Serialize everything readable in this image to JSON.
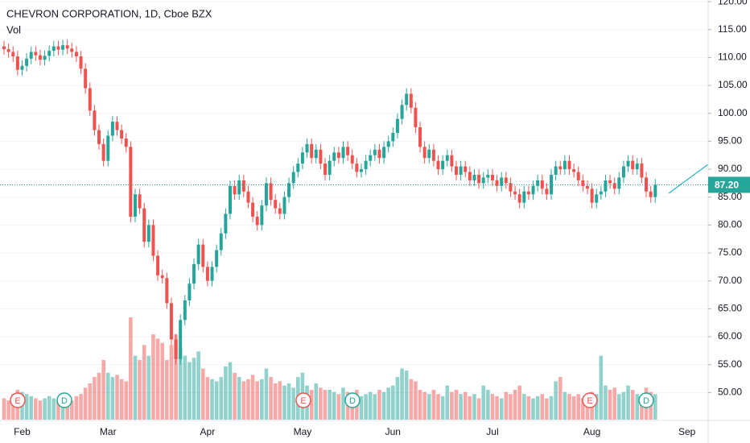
{
  "chart_data": {
    "type": "candlestick",
    "title": "CHEVRON CORPORATION, 1D, Cboe BZX",
    "volume_label": "Vol",
    "categories": [
      null,
      null,
      null,
      null,
      "Feb",
      null,
      null,
      null,
      null,
      null,
      null,
      null,
      null,
      null,
      null,
      null,
      null,
      null,
      null,
      null,
      null,
      null,
      null,
      "Mar",
      null,
      null,
      null,
      null,
      null,
      null,
      null,
      null,
      null,
      null,
      null,
      null,
      null,
      null,
      null,
      null,
      null,
      null,
      null,
      null,
      null,
      "Apr",
      null,
      null,
      null,
      null,
      null,
      null,
      null,
      null,
      null,
      null,
      null,
      null,
      null,
      null,
      null,
      null,
      null,
      null,
      null,
      null,
      "May",
      null,
      null,
      null,
      null,
      null,
      null,
      null,
      null,
      null,
      null,
      null,
      null,
      null,
      null,
      null,
      null,
      null,
      null,
      null,
      "Jun",
      null,
      null,
      null,
      null,
      null,
      null,
      null,
      null,
      null,
      null,
      null,
      null,
      null,
      null,
      null,
      null,
      null,
      null,
      null,
      null,
      null,
      "Jul",
      null,
      null,
      null,
      null,
      null,
      null,
      null,
      null,
      null,
      null,
      null,
      null,
      null,
      null,
      null,
      null,
      null,
      null,
      null,
      null,
      null,
      "Aug",
      null,
      null,
      null,
      null,
      null,
      null,
      null,
      null,
      null,
      null,
      null,
      null,
      null,
      null,
      null,
      null,
      null,
      null,
      null,
      null,
      "Sep"
    ],
    "open": [
      112.0,
      111.5,
      111.0,
      110.2,
      107.8,
      108.5,
      109.8,
      111.0,
      110.4,
      109.6,
      110.3,
      111.2,
      112.0,
      111.4,
      112.2,
      111.6,
      111.0,
      110.2,
      108.0,
      104.5,
      100.5,
      97.0,
      94.5,
      91.5,
      96.0,
      98.5,
      97.0,
      95.5,
      94.0,
      81.5,
      85.5,
      83.0,
      77.0,
      80.0,
      74.5,
      71.0,
      70.5,
      66.0,
      59.5,
      56.0,
      63.0,
      66.5,
      69.5,
      73.0,
      76.5,
      72.5,
      70.0,
      72.5,
      75.5,
      78.5,
      82.0,
      87.0,
      85.5,
      88.0,
      86.0,
      84.0,
      81.5,
      80.0,
      83.5,
      87.5,
      84.5,
      83.0,
      82.0,
      85.0,
      87.5,
      89.5,
      91.0,
      93.0,
      94.5,
      92.0,
      93.5,
      91.0,
      89.0,
      91.5,
      93.0,
      92.0,
      94.0,
      92.5,
      91.0,
      89.5,
      90.0,
      91.5,
      92.5,
      93.5,
      92.0,
      94.0,
      95.0,
      96.5,
      99.0,
      101.5,
      103.5,
      101.0,
      97.5,
      94.0,
      92.0,
      93.5,
      91.5,
      90.0,
      91.5,
      92.5,
      90.5,
      89.0,
      90.5,
      89.5,
      88.0,
      89.0,
      87.5,
      88.5,
      89.0,
      88.0,
      87.0,
      88.5,
      87.5,
      86.0,
      85.5,
      84.0,
      86.0,
      85.5,
      87.0,
      88.0,
      86.5,
      85.5,
      89.0,
      90.5,
      90.0,
      91.5,
      90.0,
      89.5,
      88.0,
      87.0,
      86.5,
      84.0,
      85.5,
      86.0,
      88.0,
      87.5,
      86.5,
      88.5,
      90.5,
      91.5,
      90.0,
      91.0,
      88.5,
      86.0,
      85.0,
      null,
      null,
      null,
      null,
      null,
      null,
      null
    ],
    "high": [
      113.0,
      112.5,
      112.0,
      111.2,
      109.5,
      110.8,
      112.0,
      112.0,
      111.4,
      111.3,
      112.2,
      113.0,
      113.0,
      113.2,
      113.2,
      112.6,
      112.0,
      111.2,
      109.0,
      105.5,
      101.5,
      98.0,
      95.5,
      97.0,
      99.5,
      99.5,
      98.0,
      96.5,
      95.0,
      86.5,
      86.5,
      84.0,
      81.0,
      81.0,
      75.5,
      72.0,
      71.5,
      67.0,
      60.5,
      64.0,
      67.5,
      70.5,
      74.0,
      77.5,
      77.5,
      73.5,
      73.5,
      76.5,
      79.5,
      83.0,
      88.0,
      88.0,
      89.0,
      89.0,
      87.0,
      85.0,
      82.5,
      84.5,
      88.5,
      88.5,
      85.5,
      84.0,
      86.0,
      88.5,
      90.5,
      92.0,
      94.0,
      95.5,
      95.5,
      94.5,
      94.5,
      92.0,
      92.5,
      94.0,
      94.0,
      95.0,
      95.0,
      93.5,
      92.0,
      91.0,
      92.5,
      93.5,
      94.5,
      94.5,
      95.0,
      96.0,
      97.5,
      100.0,
      102.5,
      104.5,
      104.5,
      102.0,
      98.5,
      95.0,
      94.5,
      94.5,
      92.5,
      92.5,
      93.5,
      93.5,
      91.5,
      91.5,
      91.5,
      90.5,
      90.0,
      90.0,
      89.5,
      90.0,
      90.0,
      89.0,
      89.5,
      89.5,
      88.5,
      87.0,
      86.5,
      87.0,
      87.0,
      88.0,
      89.0,
      89.0,
      87.5,
      90.0,
      91.5,
      91.5,
      92.5,
      92.5,
      91.0,
      90.5,
      89.0,
      88.0,
      87.5,
      86.5,
      87.0,
      89.0,
      89.0,
      88.5,
      89.5,
      91.5,
      92.5,
      92.5,
      92.0,
      92.0,
      89.5,
      87.0,
      88.2,
      null,
      null,
      null,
      null,
      null,
      null,
      null
    ],
    "low": [
      110.5,
      110.0,
      109.2,
      106.8,
      106.8,
      107.5,
      108.8,
      109.4,
      108.6,
      108.6,
      109.3,
      110.2,
      110.4,
      110.4,
      110.6,
      110.0,
      109.2,
      107.0,
      103.5,
      99.5,
      96.0,
      93.5,
      90.5,
      90.5,
      95.0,
      96.0,
      94.5,
      93.0,
      80.5,
      80.5,
      82.0,
      76.0,
      76.0,
      73.5,
      70.0,
      69.5,
      65.0,
      58.5,
      55.0,
      55.0,
      62.0,
      65.5,
      68.5,
      72.0,
      71.5,
      69.0,
      69.0,
      71.5,
      74.5,
      77.5,
      81.0,
      84.5,
      84.5,
      85.0,
      83.0,
      80.5,
      79.0,
      79.0,
      82.5,
      83.5,
      82.0,
      81.0,
      81.0,
      84.0,
      86.5,
      88.5,
      90.0,
      92.0,
      91.0,
      91.0,
      90.0,
      88.0,
      88.0,
      90.5,
      91.0,
      91.0,
      91.5,
      90.0,
      88.5,
      88.5,
      89.0,
      90.5,
      91.5,
      91.0,
      91.0,
      93.0,
      94.0,
      95.5,
      98.0,
      100.5,
      100.0,
      96.5,
      93.0,
      91.0,
      91.0,
      90.5,
      89.0,
      89.0,
      90.5,
      89.5,
      88.0,
      88.0,
      88.5,
      87.0,
      87.0,
      86.5,
      86.5,
      87.5,
      87.0,
      86.0,
      86.0,
      86.5,
      85.0,
      84.5,
      83.0,
      83.0,
      84.5,
      84.5,
      86.0,
      85.5,
      84.5,
      84.5,
      88.0,
      89.0,
      89.0,
      89.0,
      88.5,
      87.0,
      86.0,
      85.5,
      83.0,
      83.0,
      84.5,
      85.0,
      86.5,
      85.5,
      85.5,
      87.5,
      89.5,
      89.0,
      89.0,
      87.5,
      85.0,
      84.0,
      84.0,
      null,
      null,
      null,
      null,
      null,
      null,
      null
    ],
    "close": [
      111.5,
      111.0,
      110.2,
      107.8,
      108.5,
      109.8,
      111.0,
      110.4,
      109.6,
      110.3,
      111.2,
      112.0,
      111.4,
      112.2,
      111.6,
      111.0,
      110.2,
      108.0,
      104.5,
      100.5,
      97.0,
      94.5,
      91.5,
      96.0,
      98.5,
      97.0,
      95.5,
      94.0,
      81.5,
      85.5,
      83.0,
      77.0,
      80.0,
      74.5,
      71.0,
      70.5,
      66.0,
      59.5,
      56.0,
      63.0,
      66.5,
      69.5,
      73.0,
      76.5,
      72.5,
      70.0,
      72.5,
      75.5,
      78.5,
      82.0,
      87.0,
      85.5,
      88.0,
      86.0,
      84.0,
      81.5,
      80.0,
      83.5,
      87.5,
      84.5,
      83.0,
      82.0,
      85.0,
      87.5,
      89.5,
      91.0,
      93.0,
      94.5,
      92.0,
      93.5,
      91.0,
      89.0,
      91.5,
      93.0,
      92.0,
      94.0,
      92.5,
      91.0,
      89.5,
      90.0,
      91.5,
      92.5,
      93.5,
      92.0,
      94.0,
      95.0,
      96.5,
      99.0,
      101.5,
      103.5,
      101.0,
      97.5,
      94.0,
      92.0,
      93.5,
      91.5,
      90.0,
      91.5,
      92.5,
      90.5,
      89.0,
      90.5,
      89.5,
      88.0,
      89.0,
      87.5,
      88.5,
      89.0,
      88.0,
      87.0,
      88.5,
      87.5,
      86.0,
      85.5,
      84.0,
      86.0,
      85.5,
      87.0,
      88.0,
      86.5,
      85.5,
      89.0,
      90.5,
      90.0,
      91.5,
      90.0,
      89.5,
      88.0,
      87.0,
      86.5,
      84.0,
      85.5,
      86.0,
      88.0,
      87.5,
      86.5,
      88.5,
      90.5,
      91.5,
      90.0,
      91.0,
      88.5,
      86.0,
      85.0,
      87.2,
      null,
      null,
      null,
      null,
      null,
      null,
      null
    ],
    "volume": [
      10,
      9,
      12,
      14,
      13,
      12,
      11,
      10,
      9,
      10,
      11,
      10,
      9,
      9,
      10,
      9,
      11,
      12,
      15,
      17,
      20,
      22,
      28,
      22,
      20,
      21,
      19,
      18,
      48,
      30,
      28,
      35,
      30,
      40,
      38,
      36,
      28,
      35,
      40,
      33,
      30,
      27,
      29,
      32,
      24,
      20,
      19,
      18,
      20,
      25,
      27,
      22,
      20,
      18,
      19,
      21,
      18,
      19,
      24,
      20,
      17,
      18,
      16,
      17,
      15,
      20,
      22,
      16,
      14,
      17,
      15,
      14,
      14,
      13,
      12,
      15,
      13,
      12,
      14,
      11,
      12,
      13,
      12,
      14,
      13,
      15,
      16,
      20,
      24,
      23,
      19,
      18,
      14,
      13,
      12,
      14,
      12,
      11,
      16,
      13,
      14,
      12,
      13,
      11,
      12,
      10,
      16,
      14,
      12,
      11,
      10,
      13,
      12,
      14,
      16,
      12,
      11,
      10,
      11,
      12,
      10,
      11,
      18,
      20,
      13,
      12,
      11,
      12,
      10,
      11,
      13,
      12,
      30,
      16,
      14,
      15,
      12,
      13,
      16,
      14,
      12,
      11,
      15,
      13,
      12,
      null,
      null,
      null,
      null,
      null,
      null,
      null
    ],
    "colors": {
      "up": "#26a69a",
      "down": "#ef5350"
    },
    "ylim": [
      45.0,
      120.3
    ],
    "yticks": [
      {
        "value": 50,
        "label": "50.00"
      },
      {
        "value": 55,
        "label": "55.00"
      },
      {
        "value": 60,
        "label": "60.00"
      },
      {
        "value": 65,
        "label": "65.00"
      },
      {
        "value": 70,
        "label": "70.00"
      },
      {
        "value": 75,
        "label": "75.00"
      },
      {
        "value": 80,
        "label": "80.00"
      },
      {
        "value": 85,
        "label": "85.00"
      },
      {
        "value": 90,
        "label": "90.00"
      },
      {
        "value": 95,
        "label": "95.00"
      },
      {
        "value": 100,
        "label": "100.00"
      },
      {
        "value": 105,
        "label": "105.00"
      },
      {
        "value": 110,
        "label": "110.00"
      },
      {
        "value": 115,
        "label": "115.00"
      },
      {
        "value": 120,
        "label": "120.00"
      }
    ],
    "grid": true,
    "last_price": {
      "value": 87.2,
      "label": "87.20"
    },
    "events": [
      "E",
      "D",
      "E",
      "D",
      "E",
      "D"
    ]
  }
}
